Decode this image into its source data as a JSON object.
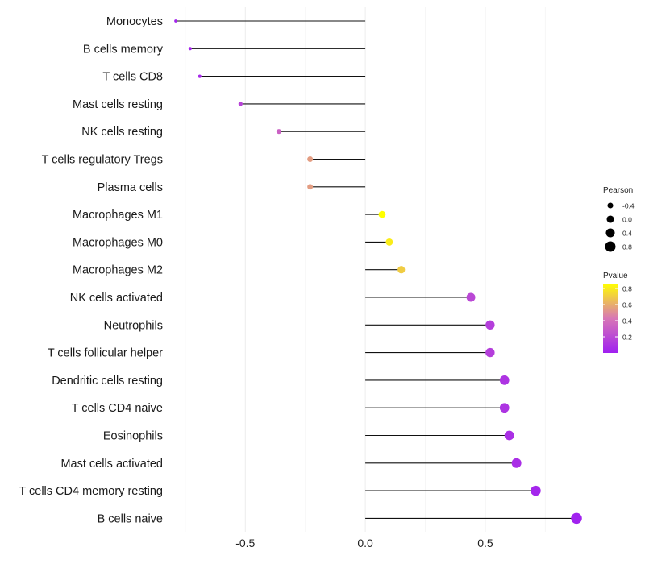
{
  "chart_data": {
    "type": "lollipop",
    "title": "",
    "xlabel": "",
    "ylabel": "",
    "xlim": [
      -0.8,
      0.89
    ],
    "x_ticks": [
      {
        "value": -0.5,
        "label": "-0.5"
      },
      {
        "value": 0.0,
        "label": "0.0"
      },
      {
        "value": 0.5,
        "label": "0.5"
      }
    ],
    "categories": [
      {
        "name": "Monocytes",
        "pearson": -0.79,
        "pvalue": 0.02
      },
      {
        "name": "B cells memory",
        "pearson": -0.73,
        "pvalue": 0.03
      },
      {
        "name": "T cells CD8",
        "pearson": -0.69,
        "pvalue": 0.05
      },
      {
        "name": "Mast cells resting",
        "pearson": -0.52,
        "pvalue": 0.18
      },
      {
        "name": "NK cells resting",
        "pearson": -0.36,
        "pvalue": 0.32
      },
      {
        "name": "T cells regulatory  Tregs ",
        "pearson": -0.23,
        "pvalue": 0.55
      },
      {
        "name": "Plasma cells",
        "pearson": -0.23,
        "pvalue": 0.55
      },
      {
        "name": "Macrophages M1",
        "pearson": 0.07,
        "pvalue": 0.86
      },
      {
        "name": "Macrophages M0",
        "pearson": 0.1,
        "pvalue": 0.8
      },
      {
        "name": "Macrophages M2",
        "pearson": 0.15,
        "pvalue": 0.7
      },
      {
        "name": "NK cells activated",
        "pearson": 0.44,
        "pvalue": 0.2
      },
      {
        "name": "Neutrophils",
        "pearson": 0.52,
        "pvalue": 0.15
      },
      {
        "name": "T cells follicular helper",
        "pearson": 0.52,
        "pvalue": 0.15
      },
      {
        "name": "Dendritic cells resting",
        "pearson": 0.58,
        "pvalue": 0.1
      },
      {
        "name": "T cells CD4 naive",
        "pearson": 0.58,
        "pvalue": 0.1
      },
      {
        "name": "Eosinophils",
        "pearson": 0.6,
        "pvalue": 0.08
      },
      {
        "name": "Mast cells activated",
        "pearson": 0.63,
        "pvalue": 0.07
      },
      {
        "name": "T cells CD4 memory resting",
        "pearson": 0.71,
        "pvalue": 0.03
      },
      {
        "name": "B cells naive",
        "pearson": 0.88,
        "pvalue": 0.01
      }
    ],
    "legend_size": {
      "title": "Pearson",
      "entries": [
        {
          "label": "-0.4",
          "value": -0.4
        },
        {
          "label": "0.0",
          "value": 0.0
        },
        {
          "label": "0.4",
          "value": 0.4
        },
        {
          "label": "0.8",
          "value": 0.8
        }
      ]
    },
    "legend_color": {
      "title": "Pvalue",
      "range": [
        0.0,
        0.86
      ],
      "ticks": [
        {
          "label": "0.8",
          "value": 0.8
        },
        {
          "label": "0.6",
          "value": 0.6
        },
        {
          "label": "0.4",
          "value": 0.4
        },
        {
          "label": "0.2",
          "value": 0.2
        }
      ],
      "low_color": "#a020f0",
      "mid_color": "#d877b5",
      "high_color": "#ffff00"
    },
    "legend_position": "right",
    "grid": true
  }
}
